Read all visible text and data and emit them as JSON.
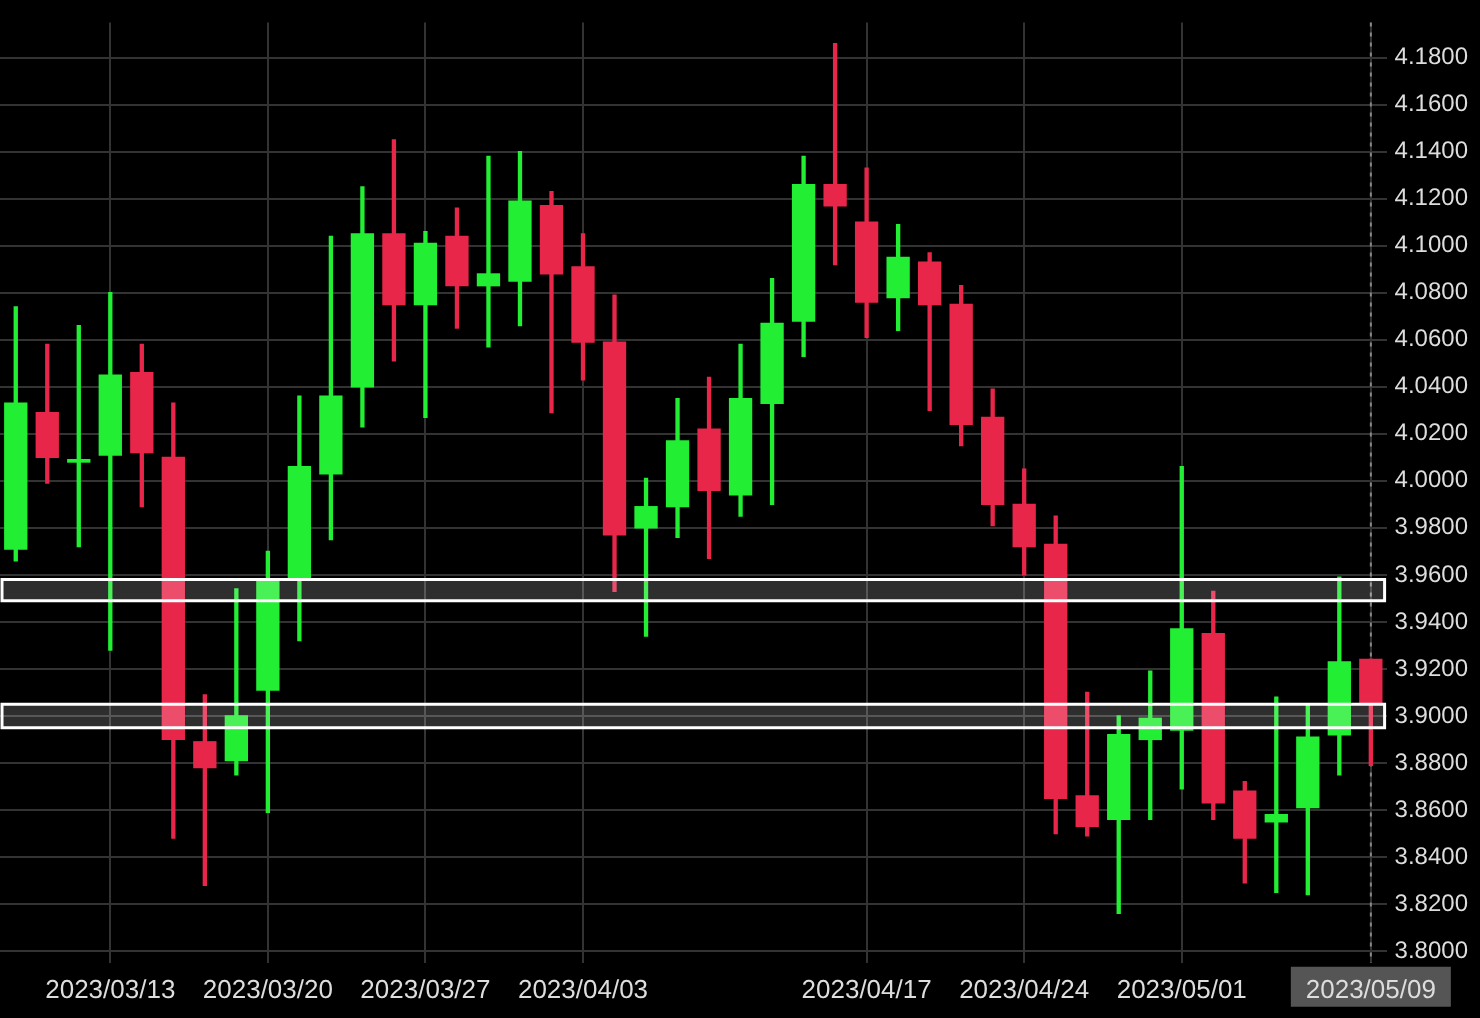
{
  "chart_data": {
    "type": "candlestick",
    "categories": [
      null,
      null,
      null,
      "2023/03/13",
      null,
      null,
      null,
      null,
      "2023/03/20",
      null,
      null,
      null,
      null,
      "2023/03/27",
      null,
      null,
      null,
      null,
      "2023/04/03",
      null,
      null,
      null,
      null,
      null,
      null,
      null,
      null,
      "2023/04/17",
      null,
      null,
      null,
      null,
      "2023/04/24",
      null,
      null,
      null,
      null,
      "2023/05/01",
      null,
      null,
      null,
      null,
      null,
      "2023/05/09"
    ],
    "ohlc": [
      [
        3.971,
        4.074,
        3.966,
        4.033
      ],
      [
        4.029,
        4.058,
        3.999,
        4.01
      ],
      [
        4.008,
        4.066,
        3.972,
        4.009
      ],
      [
        4.011,
        4.08,
        3.928,
        4.045
      ],
      [
        4.046,
        4.058,
        3.989,
        4.012
      ],
      [
        4.01,
        4.033,
        3.848,
        3.89
      ],
      [
        3.889,
        3.909,
        3.828,
        3.878
      ],
      [
        3.881,
        3.954,
        3.875,
        3.9
      ],
      [
        3.911,
        3.97,
        3.859,
        3.958
      ],
      [
        3.958,
        4.036,
        3.932,
        4.006
      ],
      [
        4.003,
        4.104,
        3.975,
        4.036
      ],
      [
        4.04,
        4.125,
        4.023,
        4.105
      ],
      [
        4.105,
        4.145,
        4.051,
        4.075
      ],
      [
        4.075,
        4.106,
        4.027,
        4.101
      ],
      [
        4.104,
        4.116,
        4.065,
        4.083
      ],
      [
        4.083,
        4.138,
        4.057,
        4.088
      ],
      [
        4.085,
        4.14,
        4.066,
        4.119
      ],
      [
        4.117,
        4.123,
        4.029,
        4.088
      ],
      [
        4.091,
        4.105,
        4.043,
        4.059
      ],
      [
        4.059,
        4.079,
        3.953,
        3.977
      ],
      [
        3.98,
        4.001,
        3.934,
        3.989
      ],
      [
        3.989,
        4.035,
        3.976,
        4.017
      ],
      [
        4.022,
        4.044,
        3.967,
        3.996
      ],
      [
        3.994,
        4.058,
        3.985,
        4.035
      ],
      [
        4.033,
        4.086,
        3.99,
        4.067
      ],
      [
        4.068,
        4.138,
        4.053,
        4.126
      ],
      [
        4.126,
        4.186,
        4.092,
        4.117
      ],
      [
        4.11,
        4.133,
        4.061,
        4.076
      ],
      [
        4.078,
        4.109,
        4.064,
        4.095
      ],
      [
        4.093,
        4.097,
        4.03,
        4.075
      ],
      [
        4.075,
        4.083,
        4.015,
        4.024
      ],
      [
        4.027,
        4.039,
        3.981,
        3.99
      ],
      [
        3.99,
        4.005,
        3.96,
        3.972
      ],
      [
        3.973,
        3.985,
        3.85,
        3.865
      ],
      [
        3.866,
        3.91,
        3.849,
        3.853
      ],
      [
        3.856,
        3.9,
        3.816,
        3.892
      ],
      [
        3.89,
        3.919,
        3.856,
        3.899
      ],
      [
        3.894,
        4.006,
        3.869,
        3.937
      ],
      [
        3.935,
        3.953,
        3.856,
        3.863
      ],
      [
        3.868,
        3.872,
        3.829,
        3.848
      ],
      [
        3.855,
        3.908,
        3.825,
        3.858
      ],
      [
        3.861,
        3.905,
        3.824,
        3.891
      ],
      [
        3.892,
        3.959,
        3.875,
        3.923
      ],
      [
        3.924,
        3.924,
        3.879,
        3.905
      ]
    ],
    "colors": [
      "#22ee33",
      "#e8264a",
      "#22ee33",
      "#22ee33",
      "#e8264a",
      "#e8264a",
      "#e8264a",
      "#22ee33",
      "#22ee33",
      "#22ee33",
      "#22ee33",
      "#22ee33",
      "#e8264a",
      "#22ee33",
      "#e8264a",
      "#22ee33",
      "#22ee33",
      "#e8264a",
      "#e8264a",
      "#e8264a",
      "#22ee33",
      "#22ee33",
      "#e8264a",
      "#22ee33",
      "#22ee33",
      "#22ee33",
      "#e8264a",
      "#e8264a",
      "#22ee33",
      "#e8264a",
      "#e8264a",
      "#e8264a",
      "#e8264a",
      "#e8264a",
      "#e8264a",
      "#22ee33",
      "#22ee33",
      "#22ee33",
      "#e8264a",
      "#e8264a",
      "#22ee33",
      "#22ee33",
      "#22ee33",
      "#e8264a"
    ],
    "ylim": [
      3.795,
      4.195
    ],
    "yticks": [
      {
        "value": 3.8,
        "label": "3.8000"
      },
      {
        "value": 3.82,
        "label": "3.8200"
      },
      {
        "value": 3.84,
        "label": "3.8400"
      },
      {
        "value": 3.86,
        "label": "3.8600"
      },
      {
        "value": 3.88,
        "label": "3.8800"
      },
      {
        "value": 3.9,
        "label": "3.9000"
      },
      {
        "value": 3.92,
        "label": "3.9200"
      },
      {
        "value": 3.94,
        "label": "3.9400"
      },
      {
        "value": 3.96,
        "label": "3.9600"
      },
      {
        "value": 3.98,
        "label": "3.9800"
      },
      {
        "value": 4.0,
        "label": "4.0000"
      },
      {
        "value": 4.02,
        "label": "4.0200"
      },
      {
        "value": 4.04,
        "label": "4.0400"
      },
      {
        "value": 4.06,
        "label": "4.0600"
      },
      {
        "value": 4.08,
        "label": "4.0800"
      },
      {
        "value": 4.1,
        "label": "4.1000"
      },
      {
        "value": 4.12,
        "label": "4.1200"
      },
      {
        "value": 4.14,
        "label": "4.1400"
      },
      {
        "value": 4.16,
        "label": "4.1600"
      },
      {
        "value": 4.18,
        "label": "4.1800"
      }
    ],
    "grid": true,
    "bands": [
      {
        "axis": "y",
        "from": 3.949,
        "to": 3.958,
        "color": "#ffffff"
      },
      {
        "axis": "y",
        "from": 3.895,
        "to": 3.905,
        "color": "#ffffff"
      }
    ],
    "ref_lines": [
      {
        "axis": "x",
        "value": "2023/05/09",
        "color": "#888888",
        "line_style": "dotted"
      }
    ]
  }
}
